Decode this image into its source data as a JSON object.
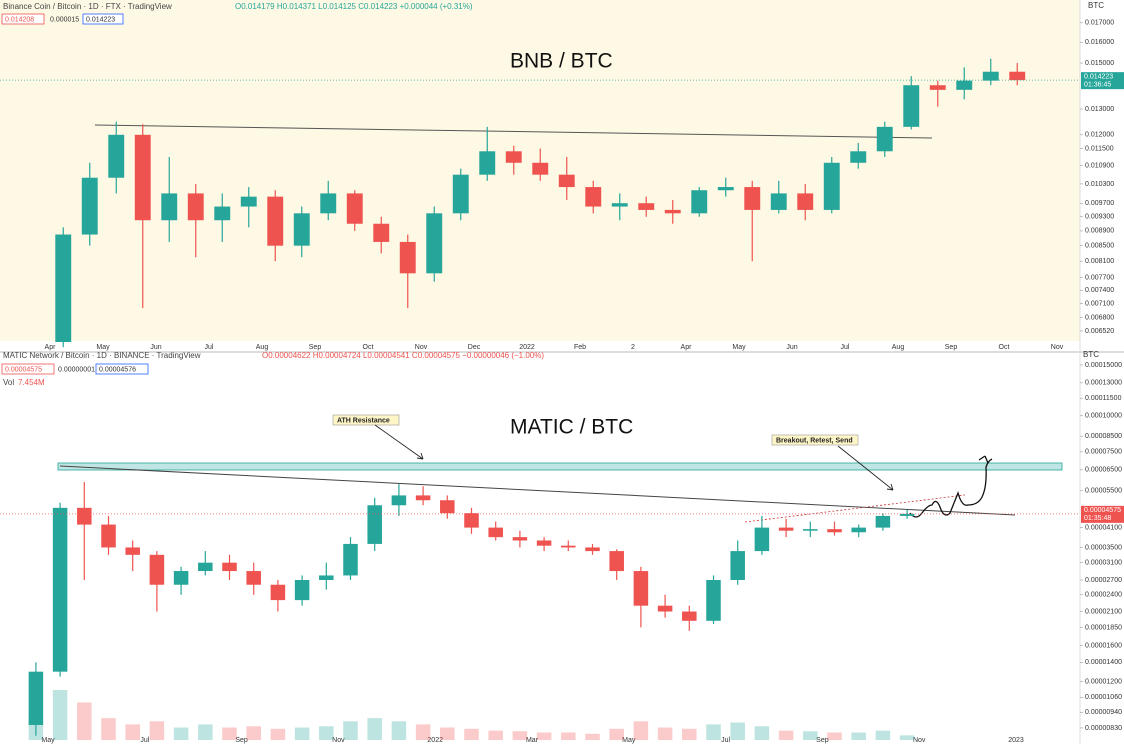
{
  "chart_data": [
    {
      "type": "candlestick",
      "title": "BNB / BTC",
      "header": "Binance Coin / Bitcoin · 1D · FTX · TradingView",
      "ohlc_text": "O0.014179 H0.014371 L0.014125 C0.014223 +0.000044 (+0.31%)",
      "legend_boxes": [
        "0.014208",
        "0.000015",
        "0.014223"
      ],
      "axis_unit": "BTC",
      "last_price_label": "0.014223",
      "countdown": "01:36:45",
      "price_tag_color": "#26a69a",
      "up_color": "#26a69a",
      "down_color": "#ef5350",
      "log_scale": true,
      "categories": [
        null,
        null,
        "Apr",
        null,
        "May",
        null,
        "Jun",
        null,
        "Jul",
        null,
        "Aug",
        null,
        "Sep",
        null,
        "Oct",
        null,
        "Nov",
        null,
        "Dec",
        null,
        "2022",
        null,
        "Feb",
        null,
        "2",
        null,
        "Apr",
        null,
        "May",
        null,
        "Jun",
        null,
        "Jul",
        null,
        "Aug",
        null,
        "Sep",
        null,
        "Oct",
        null,
        "Nov"
      ],
      "open": [
        null,
        null,
        0.0063,
        0.0088,
        0.0105,
        0.012,
        0.0092,
        0.01,
        0.0092,
        0.0096,
        0.0099,
        0.0085,
        0.0094,
        0.01,
        0.0091,
        0.0086,
        0.0078,
        0.0094,
        0.0106,
        0.0114,
        0.011,
        0.0106,
        0.0102,
        0.0096,
        0.0097,
        0.0095,
        0.0094,
        0.0101,
        0.0102,
        0.0095,
        0.01,
        0.0095,
        0.011,
        0.0114,
        0.0123,
        0.014,
        0.0138,
        0.0142,
        0.0146,
        null,
        null
      ],
      "high": [
        null,
        null,
        0.009,
        0.011,
        0.0125,
        0.0124,
        0.0112,
        0.0103,
        0.01,
        0.0102,
        0.0101,
        0.0096,
        0.0104,
        0.0101,
        0.0093,
        0.0088,
        0.0096,
        0.0108,
        0.0123,
        0.0116,
        0.0115,
        0.0112,
        0.0104,
        0.01,
        0.0099,
        0.0098,
        0.0102,
        0.0105,
        0.0104,
        0.0104,
        0.0103,
        0.0112,
        0.0117,
        0.0125,
        0.0144,
        0.0142,
        0.0148,
        0.0152,
        0.015,
        null,
        null
      ],
      "low": [
        null,
        null,
        0.0062,
        0.0085,
        0.01,
        0.007,
        0.0086,
        0.0082,
        0.0086,
        0.009,
        0.0081,
        0.0082,
        0.0092,
        0.0089,
        0.0083,
        0.007,
        0.0076,
        0.0092,
        0.0104,
        0.0106,
        0.0104,
        0.0098,
        0.0094,
        0.0092,
        0.0093,
        0.0091,
        0.0093,
        0.0099,
        0.0081,
        0.0094,
        0.0092,
        0.0094,
        0.0108,
        0.0112,
        0.0122,
        0.0131,
        0.0134,
        0.014,
        0.014,
        null,
        null
      ],
      "close": [
        null,
        null,
        0.0088,
        0.0105,
        0.012,
        0.0092,
        0.01,
        0.0092,
        0.0096,
        0.0099,
        0.0085,
        0.0094,
        0.01,
        0.0091,
        0.0086,
        0.0078,
        0.0094,
        0.0106,
        0.0114,
        0.011,
        0.0106,
        0.0102,
        0.0096,
        0.0097,
        0.0095,
        0.0094,
        0.0101,
        0.0102,
        0.0095,
        0.01,
        0.0095,
        0.011,
        0.0114,
        0.0123,
        0.014,
        0.0138,
        0.0142,
        0.0146,
        0.014223,
        null,
        null
      ],
      "ylim": [
        0.0063,
        0.0178
      ],
      "yticks": [
        {
          "value": 0.017,
          "label": "0.017000"
        },
        {
          "value": 0.016,
          "label": "0.016000"
        },
        {
          "value": 0.015,
          "label": "0.015000"
        },
        {
          "value": 0.013,
          "label": "0.013000"
        },
        {
          "value": 0.012,
          "label": "0.012000"
        },
        {
          "value": 0.0115,
          "label": "0.011500"
        },
        {
          "value": 0.0109,
          "label": "0.010900"
        },
        {
          "value": 0.0103,
          "label": "0.010300"
        },
        {
          "value": 0.0097,
          "label": "0.009700"
        },
        {
          "value": 0.0093,
          "label": "0.009300"
        },
        {
          "value": 0.0089,
          "label": "0.008900"
        },
        {
          "value": 0.0085,
          "label": "0.008500"
        },
        {
          "value": 0.0081,
          "label": "0.008100"
        },
        {
          "value": 0.0077,
          "label": "0.007700"
        },
        {
          "value": 0.0074,
          "label": "0.007400"
        },
        {
          "value": 0.0071,
          "label": "0.007100"
        },
        {
          "value": 0.0068,
          "label": "0.006800"
        },
        {
          "value": 0.00652,
          "label": "0.006520"
        }
      ]
    },
    {
      "type": "candlestick",
      "title": "MATIC / BTC",
      "header": "MATIC Network / Bitcoin · 1D · BINANCE · TradingView",
      "ohlc_text": "O0.00004622 H0.00004724 L0.00004541 C0.00004575 −0.00000046 (−1.00%)",
      "legend_boxes": [
        "0.00004575",
        "0.00000001",
        "0.00004576"
      ],
      "volume_label": "Vol",
      "volume_value": "7.454M",
      "axis_unit": "BTC",
      "last_price_label": "0.00004575",
      "countdown": "01:35:48",
      "price_tag_color": "#ef5350",
      "annotations": [
        "ATH Resistance",
        "Breakout, Retest, Send"
      ],
      "up_color": "#26a69a",
      "down_color": "#ef5350",
      "log_scale": true,
      "categories": [
        null,
        null,
        "May",
        null,
        null,
        null,
        "Jul",
        null,
        null,
        null,
        "Sep",
        null,
        null,
        null,
        "Nov",
        null,
        null,
        null,
        "2022",
        null,
        null,
        null,
        "Mar",
        null,
        null,
        null,
        "May",
        null,
        null,
        null,
        "Jul",
        null,
        null,
        null,
        "Sep",
        null,
        null,
        null,
        "Nov",
        null,
        null,
        null,
        "2023",
        null
      ],
      "open": [
        null,
        8.5e-06,
        1.3e-05,
        4.8e-05,
        4.2e-05,
        3.5e-05,
        3.3e-05,
        2.6e-05,
        2.9e-05,
        3.1e-05,
        2.9e-05,
        2.6e-05,
        2.3e-05,
        2.7e-05,
        2.8e-05,
        3.6e-05,
        4.9e-05,
        5.3e-05,
        5.1e-05,
        4.6e-05,
        4.1e-05,
        3.8e-05,
        3.7e-05,
        3.55e-05,
        3.5e-05,
        3.4e-05,
        2.9e-05,
        2.2e-05,
        2.1e-05,
        1.95e-05,
        2.7e-05,
        3.4e-05,
        4.1e-05,
        4e-05,
        4.05e-05,
        3.95e-05,
        4.1e-05,
        4.5e-05,
        null,
        null,
        null,
        null,
        null,
        null
      ],
      "high": [
        null,
        1.4e-05,
        5e-05,
        5.9e-05,
        4.5e-05,
        3.7e-05,
        3.4e-05,
        3e-05,
        3.4e-05,
        3.3e-05,
        3.1e-05,
        2.7e-05,
        2.8e-05,
        3.1e-05,
        3.8e-05,
        5.2e-05,
        5.8e-05,
        5.7e-05,
        5.3e-05,
        4.8e-05,
        4.3e-05,
        4e-05,
        3.8e-05,
        3.7e-05,
        3.6e-05,
        3.45e-05,
        3e-05,
        2.4e-05,
        2.2e-05,
        2.8e-05,
        3.7e-05,
        4.5e-05,
        4.4e-05,
        4.3e-05,
        4.3e-05,
        4.2e-05,
        4.6e-05,
        4.72e-05,
        null,
        null,
        null,
        null,
        null,
        null
      ],
      "low": [
        null,
        7.8e-06,
        1.25e-05,
        2.7e-05,
        3.3e-05,
        2.9e-05,
        2.1e-05,
        2.4e-05,
        2.8e-05,
        2.7e-05,
        2.4e-05,
        2.1e-05,
        2.2e-05,
        2.5e-05,
        2.7e-05,
        3.4e-05,
        4.5e-05,
        4.9e-05,
        4.4e-05,
        3.9e-05,
        3.7e-05,
        3.5e-05,
        3.4e-05,
        3.4e-05,
        3.3e-05,
        2.7e-05,
        1.85e-05,
        2e-05,
        1.8e-05,
        1.9e-05,
        2.6e-05,
        3.3e-05,
        3.8e-05,
        3.8e-05,
        3.85e-05,
        3.8e-05,
        4e-05,
        4.4e-05,
        null,
        null,
        null,
        null,
        null,
        null
      ],
      "close": [
        null,
        1.3e-05,
        4.8e-05,
        4.2e-05,
        3.5e-05,
        3.3e-05,
        2.6e-05,
        2.9e-05,
        3.1e-05,
        2.9e-05,
        2.6e-05,
        2.3e-05,
        2.7e-05,
        2.8e-05,
        3.6e-05,
        4.9e-05,
        5.3e-05,
        5.1e-05,
        4.6e-05,
        4.1e-05,
        3.8e-05,
        3.7e-05,
        3.55e-05,
        3.5e-05,
        3.4e-05,
        2.9e-05,
        2.2e-05,
        2.1e-05,
        1.95e-05,
        2.7e-05,
        3.4e-05,
        4.1e-05,
        4e-05,
        4.05e-05,
        3.95e-05,
        4.1e-05,
        4.5e-05,
        4.575e-05,
        null,
        null,
        null,
        null,
        null,
        null
      ],
      "volume": [
        null,
        40,
        80,
        60,
        35,
        25,
        30,
        20,
        25,
        20,
        22,
        18,
        20,
        22,
        30,
        35,
        30,
        25,
        20,
        18,
        15,
        14,
        12,
        12,
        10,
        18,
        30,
        20,
        18,
        25,
        28,
        22,
        15,
        14,
        12,
        12,
        15,
        7.454,
        null,
        null,
        null,
        null,
        null,
        null
      ],
      "ylim": [
        7.54e-06,
        0.000156
      ],
      "yticks": [
        {
          "value": 0.00015,
          "label": "0.00015000"
        },
        {
          "value": 0.00013,
          "label": "0.00013000"
        },
        {
          "value": 0.000115,
          "label": "0.00011500"
        },
        {
          "value": 0.0001,
          "label": "0.00010000"
        },
        {
          "value": 8.5e-05,
          "label": "0.00008500"
        },
        {
          "value": 7.5e-05,
          "label": "0.00007500"
        },
        {
          "value": 6.5e-05,
          "label": "0.00006500"
        },
        {
          "value": 5.5e-05,
          "label": "0.00005500"
        },
        {
          "value": 4.1e-05,
          "label": "0.00004100"
        },
        {
          "value": 3.5e-05,
          "label": "0.00003500"
        },
        {
          "value": 3.1e-05,
          "label": "0.00003100"
        },
        {
          "value": 2.7e-05,
          "label": "0.00002700"
        },
        {
          "value": 2.4e-05,
          "label": "0.00002400"
        },
        {
          "value": 2.1e-05,
          "label": "0.00002100"
        },
        {
          "value": 1.85e-05,
          "label": "0.00001850"
        },
        {
          "value": 1.6e-05,
          "label": "0.00001600"
        },
        {
          "value": 1.4e-05,
          "label": "0.00001400"
        },
        {
          "value": 1.2e-05,
          "label": "0.00001200"
        },
        {
          "value": 1.06e-05,
          "label": "0.00001060"
        },
        {
          "value": 9.4e-06,
          "label": "0.00000940"
        },
        {
          "value": 8.3e-06,
          "label": "0.00000830"
        }
      ]
    }
  ]
}
